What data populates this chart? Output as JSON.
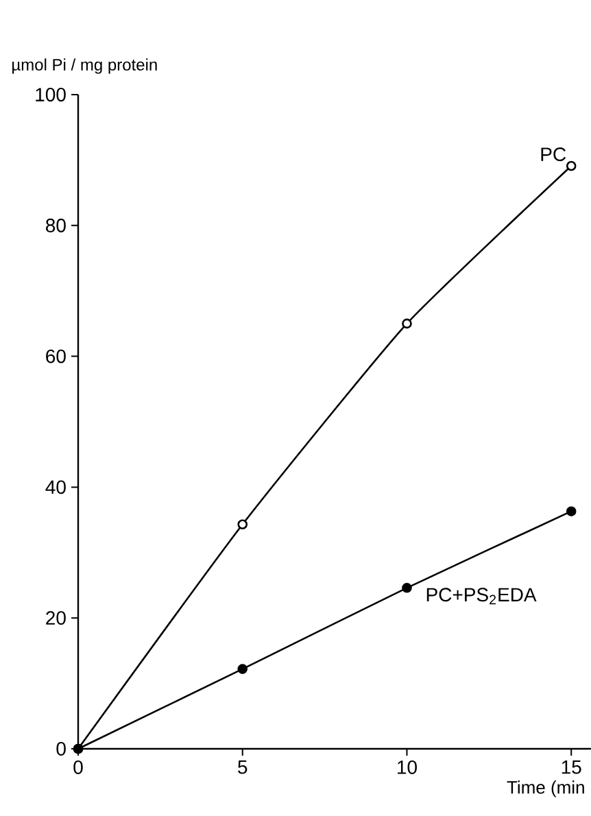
{
  "chart_data": {
    "type": "line",
    "xlabel": "Time (min",
    "ylabel": "µmol Pi / mg protein",
    "x": [
      0,
      5,
      10,
      15
    ],
    "xlim": [
      0,
      15.6
    ],
    "xticks": [
      0,
      5,
      10,
      15
    ],
    "ylim": [
      0,
      100
    ],
    "yticks": [
      0,
      20,
      40,
      60,
      80,
      100
    ],
    "grid": false,
    "legend": false,
    "marker": "circle",
    "line_style": "solid",
    "series": [
      {
        "name": "PC",
        "color": "#000000",
        "values": [
          0,
          34.3,
          65.0,
          89.1
        ]
      },
      {
        "name": "PC+PS$_{2}$EDA",
        "color": "#000000",
        "values": [
          0,
          12.2,
          24.6,
          36.3
        ]
      }
    ]
  }
}
